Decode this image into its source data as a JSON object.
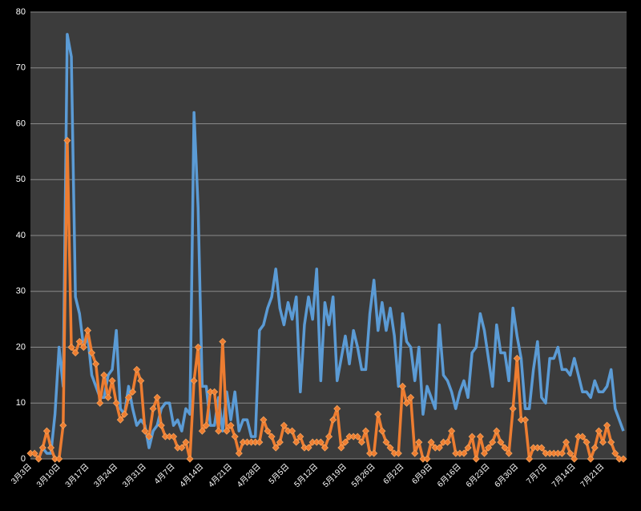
{
  "chart_data": {
    "type": "line",
    "categories": [
      "3月3日",
      null,
      null,
      null,
      null,
      null,
      null,
      "3月10日",
      null,
      null,
      null,
      null,
      null,
      null,
      "3月17日",
      null,
      null,
      null,
      null,
      null,
      null,
      "3月24日",
      null,
      null,
      null,
      null,
      null,
      null,
      "3月31日",
      null,
      null,
      null,
      null,
      null,
      null,
      "4月7日",
      null,
      null,
      null,
      null,
      null,
      null,
      "4月14日",
      null,
      null,
      null,
      null,
      null,
      null,
      "4月21日",
      null,
      null,
      null,
      null,
      null,
      null,
      "4月28日",
      null,
      null,
      null,
      null,
      null,
      null,
      "5月5日",
      null,
      null,
      null,
      null,
      null,
      null,
      "5月12日",
      null,
      null,
      null,
      null,
      null,
      null,
      "5月19日",
      null,
      null,
      null,
      null,
      null,
      null,
      "5月26日",
      null,
      null,
      null,
      null,
      null,
      null,
      "6月2日",
      null,
      null,
      null,
      null,
      null,
      null,
      "6月9日",
      null,
      null,
      null,
      null,
      null,
      null,
      "6月16日",
      null,
      null,
      null,
      null,
      null,
      null,
      "6月23日",
      null,
      null,
      null,
      null,
      null,
      null,
      "6月30日",
      null,
      null,
      null,
      null,
      null,
      null,
      "7月7日",
      null,
      null,
      null,
      null,
      null,
      null,
      "7月14日",
      null,
      null,
      null,
      null,
      null,
      null,
      "7月21日",
      null,
      null,
      null,
      null,
      null
    ],
    "series": [
      {
        "color": "#5b9bd5",
        "marker": false,
        "values": [
          1,
          1,
          0,
          2,
          1,
          1,
          8,
          20,
          13,
          76,
          72,
          29,
          26,
          20,
          22,
          15,
          13,
          11,
          11,
          15,
          16,
          23,
          9,
          8,
          13,
          9,
          6,
          7,
          6,
          2,
          5,
          6,
          9,
          10,
          10,
          6,
          7,
          5,
          9,
          8,
          62,
          45,
          13,
          13,
          6,
          6,
          11,
          5,
          12,
          7,
          12,
          5,
          7,
          7,
          4,
          4,
          23,
          24,
          27,
          29,
          34,
          27,
          24,
          28,
          25,
          29,
          12,
          24,
          29,
          25,
          34,
          14,
          28,
          24,
          29,
          14,
          18,
          22,
          17,
          23,
          20,
          16,
          16,
          26,
          32,
          23,
          28,
          23,
          27,
          22,
          13,
          26,
          21,
          20,
          14,
          20,
          8,
          13,
          11,
          9,
          24,
          15,
          14,
          12,
          9,
          12,
          14,
          11,
          19,
          20,
          26,
          23,
          18,
          13,
          24,
          19,
          19,
          14,
          27,
          22,
          18,
          9,
          9,
          16,
          21,
          11,
          10,
          18,
          18,
          20,
          16,
          16,
          15,
          18,
          15,
          12,
          12,
          11,
          14,
          12,
          12,
          13,
          16,
          9,
          7,
          5
        ]
      },
      {
        "color": "#ed7d31",
        "marker": true,
        "values": [
          1,
          1,
          0,
          2,
          5,
          2,
          0,
          0,
          6,
          57,
          20,
          19,
          21,
          20,
          23,
          19,
          17,
          10,
          15,
          11,
          14,
          10,
          7,
          8,
          11,
          12,
          16,
          14,
          5,
          4,
          9,
          11,
          6,
          4,
          4,
          4,
          2,
          2,
          3,
          0,
          14,
          20,
          5,
          6,
          12,
          12,
          5,
          21,
          5,
          6,
          4,
          1,
          3,
          3,
          3,
          3,
          3,
          7,
          5,
          4,
          2,
          3,
          6,
          5,
          5,
          3,
          4,
          2,
          2,
          3,
          3,
          3,
          2,
          4,
          7,
          9,
          2,
          3,
          4,
          4,
          4,
          3,
          5,
          1,
          1,
          8,
          5,
          3,
          2,
          1,
          1,
          13,
          10,
          11,
          1,
          3,
          0,
          0,
          3,
          2,
          2,
          3,
          3,
          5,
          1,
          1,
          1,
          2,
          4,
          0,
          4,
          1,
          2,
          3,
          5,
          3,
          2,
          1,
          9,
          18,
          7,
          7,
          0,
          2,
          2,
          2,
          1,
          1,
          1,
          1,
          1,
          3,
          1,
          0,
          4,
          4,
          3,
          0,
          2,
          5,
          3,
          6,
          3,
          1,
          0,
          0
        ]
      }
    ],
    "ylim": [
      0,
      80
    ],
    "yticks": [
      0,
      10,
      20,
      30,
      40,
      50,
      60,
      70,
      80
    ],
    "grid": true
  }
}
